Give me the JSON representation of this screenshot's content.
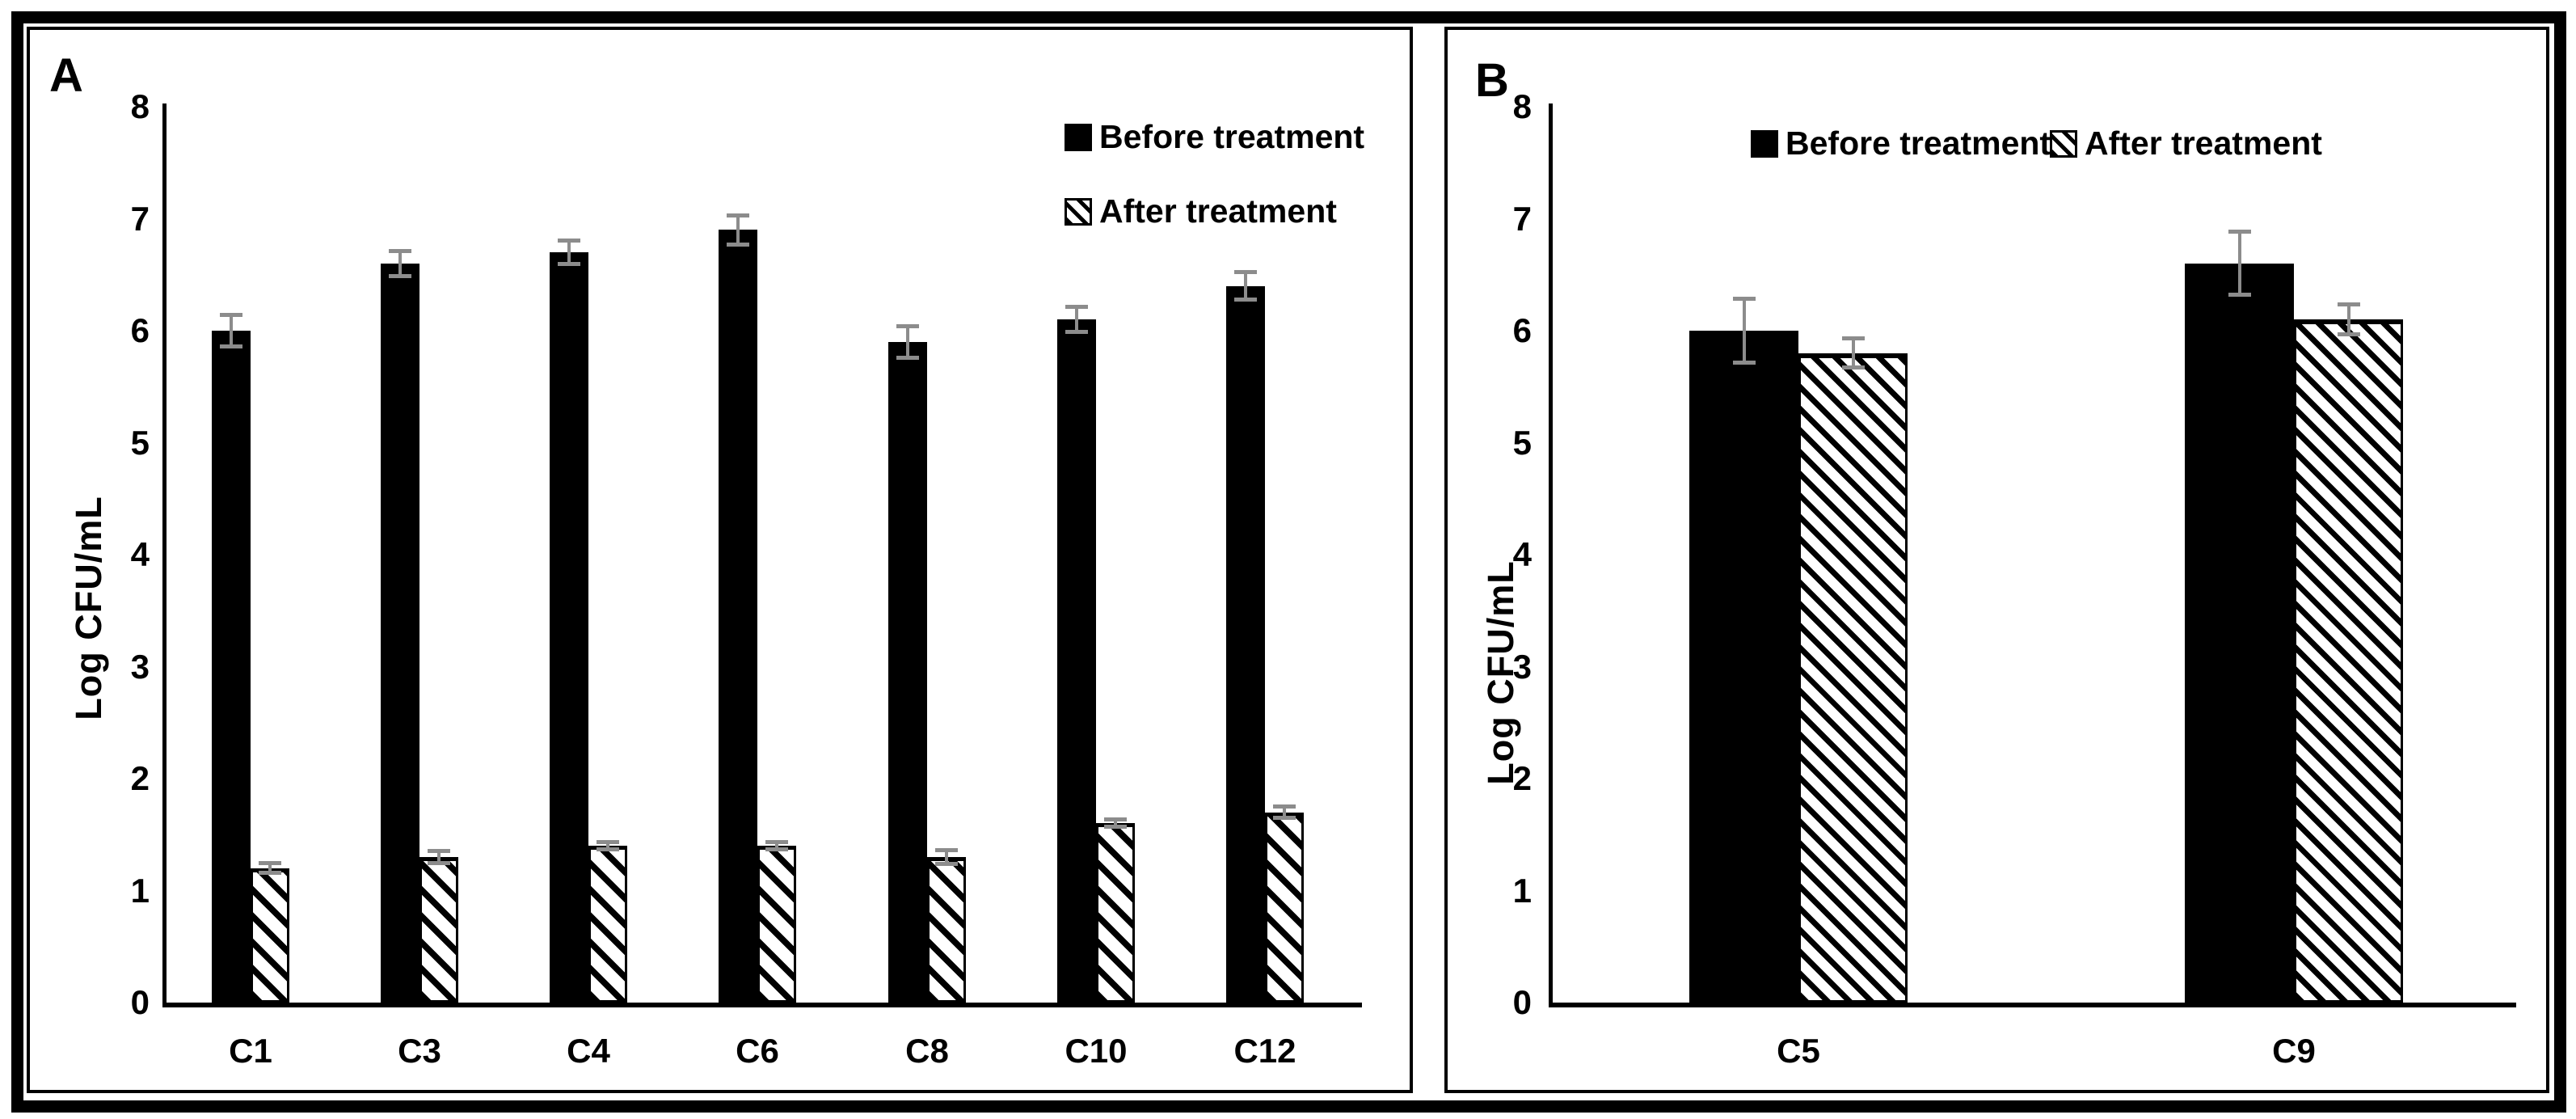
{
  "styles": {
    "background": "#ffffff",
    "frame_border": "#000000",
    "bar_fill": "#000000",
    "hatch_color": "#000000",
    "error_bar_color": "#8c8c8c"
  },
  "chart_data": [
    {
      "type": "bar",
      "panel_label": "A",
      "title": "",
      "xlabel": "",
      "ylabel": "Log CFU/mL",
      "ylim": [
        0,
        8
      ],
      "yticks": [
        0,
        1,
        2,
        3,
        4,
        5,
        6,
        7,
        8
      ],
      "grid": false,
      "legend_position": "upper-right, stacked vertically",
      "categories": [
        "C1",
        "C3",
        "C4",
        "C6",
        "C8",
        "C10",
        "C12"
      ],
      "series": [
        {
          "name": "Before treatment",
          "fill": "solid-black",
          "values": [
            6.0,
            6.6,
            6.7,
            6.9,
            5.9,
            6.1,
            6.4
          ],
          "errors": [
            0.16,
            0.13,
            0.12,
            0.15,
            0.16,
            0.13,
            0.14
          ]
        },
        {
          "name": "After treatment",
          "fill": "diagonal-hatch",
          "values": [
            1.2,
            1.3,
            1.4,
            1.4,
            1.3,
            1.6,
            1.7
          ],
          "errors": [
            0.06,
            0.07,
            0.05,
            0.05,
            0.08,
            0.05,
            0.07
          ]
        }
      ]
    },
    {
      "type": "bar",
      "panel_label": "B",
      "title": "",
      "xlabel": "",
      "ylabel": "Log CFU/mL",
      "ylim": [
        0,
        8
      ],
      "yticks": [
        0,
        1,
        2,
        3,
        4,
        5,
        6,
        7,
        8
      ],
      "grid": false,
      "legend_position": "top-center, horizontal",
      "categories": [
        "C5",
        "C9"
      ],
      "series": [
        {
          "name": "Before treatment",
          "fill": "solid-black",
          "values": [
            6.0,
            6.6
          ],
          "errors": [
            0.3,
            0.3
          ]
        },
        {
          "name": "After treatment",
          "fill": "diagonal-hatch",
          "values": [
            5.8,
            6.1
          ],
          "errors": [
            0.15,
            0.15
          ]
        }
      ]
    }
  ]
}
